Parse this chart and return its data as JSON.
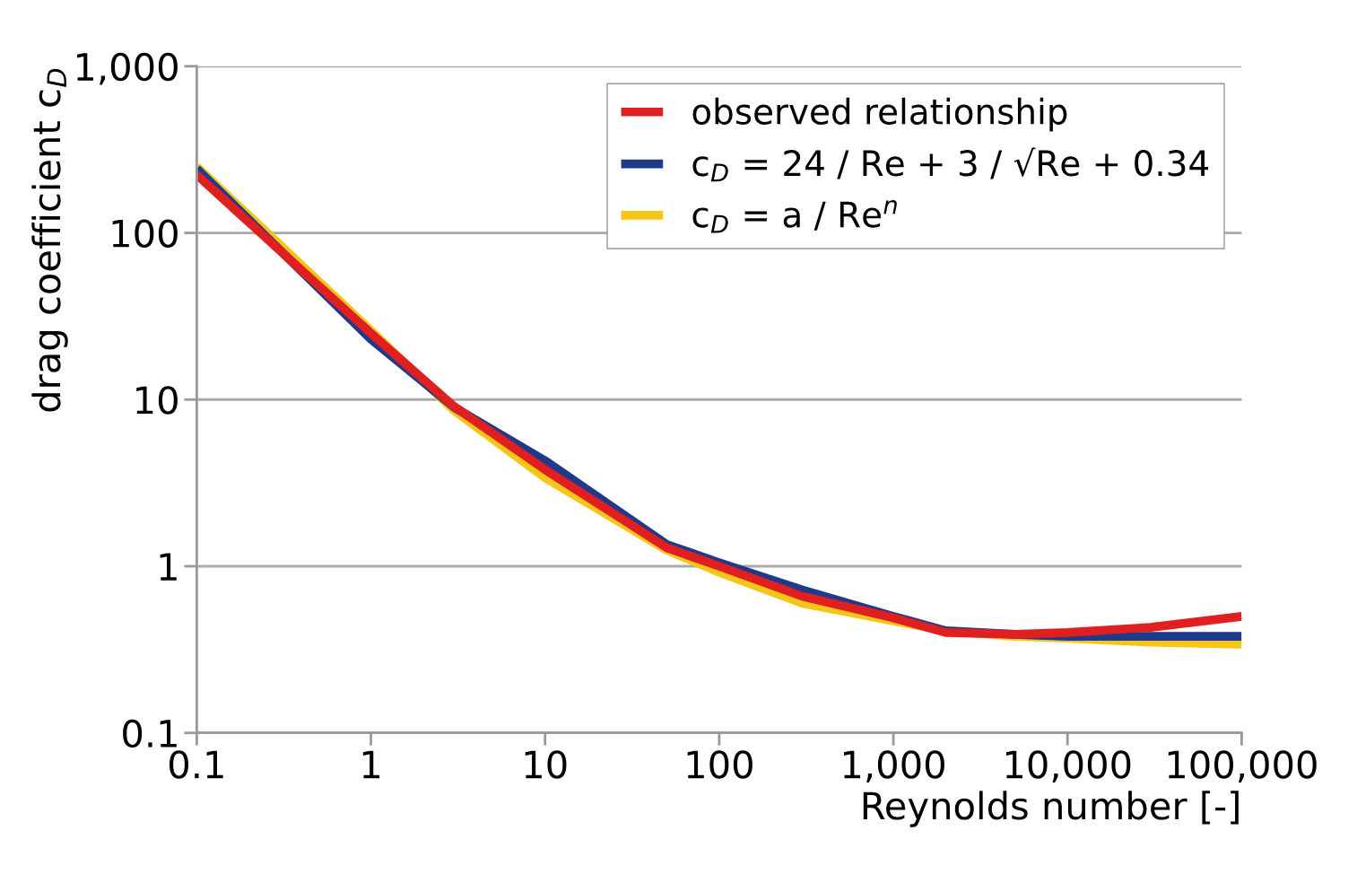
{
  "chart_data": {
    "type": "line",
    "xlabel": "Reynolds number [-]",
    "ylabel": "drag coefficient c$_{D}$",
    "log": "xy",
    "grid": "y",
    "legend": "top right",
    "line_style": "solid",
    "marker": "none",
    "x": [
      0.1,
      1,
      3,
      10,
      50,
      100,
      300,
      1000,
      2000,
      5000,
      10000,
      30000,
      100000
    ],
    "xlim": [
      0.1,
      100000
    ],
    "xticks": [
      0.1,
      1,
      10,
      100,
      {
        "value": 1000,
        "label": "1,000"
      },
      {
        "value": 10000,
        "label": "10,000"
      },
      {
        "value": 100000,
        "label": "100,000"
      }
    ],
    "ylim": [
      0.1,
      1000
    ],
    "yticks": [
      0.1,
      1,
      10,
      100,
      {
        "value": 1000,
        "label": "1,000"
      }
    ],
    "series": [
      {
        "name": "c$_{D}$ = a / Re$^{n}$",
        "color": "#f5c518",
        "values": [
          250,
          26,
          8.6,
          3.4,
          1.25,
          0.92,
          0.6,
          0.47,
          0.41,
          0.38,
          0.37,
          0.35,
          0.34
        ]
      },
      {
        "name": "c$_{D}$ = 24 / Re + 3 / √Re + 0.34",
        "color": "#1f3a8a",
        "values": [
          243,
          23,
          9.0,
          4.3,
          1.35,
          1.05,
          0.72,
          0.5,
          0.41,
          0.39,
          0.38,
          0.38,
          0.38
        ]
      },
      {
        "name": "observed relationship",
        "color": "#e02020",
        "values": [
          223,
          25,
          9.1,
          3.8,
          1.29,
          1.0,
          0.66,
          0.49,
          0.4,
          0.39,
          0.4,
          0.43,
          0.5
        ]
      }
    ]
  }
}
